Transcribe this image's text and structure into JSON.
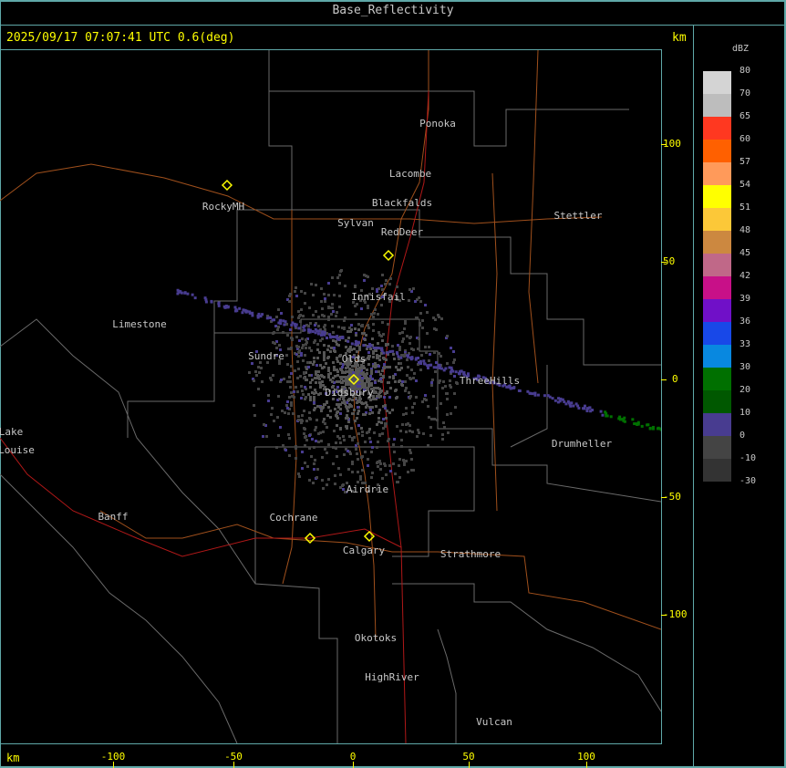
{
  "title": "Base_Reflectivity",
  "timestamp": "2025/09/17 07:07:41 UTC 0.6(deg)",
  "unit_top": "km",
  "unit_bottom": "km",
  "x_ticks": [
    "-100",
    "-50",
    "0",
    "50",
    "100"
  ],
  "y_ticks": [
    "100",
    "50",
    "0",
    "-50",
    "-100"
  ],
  "legend": {
    "title": "dBZ",
    "levels": [
      "80",
      "70",
      "65",
      "60",
      "57",
      "54",
      "51",
      "48",
      "45",
      "42",
      "39",
      "36",
      "33",
      "30",
      "20",
      "10",
      "0",
      "-10",
      "-30"
    ],
    "colors": [
      "#d4d4d4",
      "#bdbdbd",
      "#ff3820",
      "#ff6000",
      "#ff9a5a",
      "#ffff00",
      "#fcc838",
      "#cc8840",
      "#c06888",
      "#c81088",
      "#7010c8",
      "#1848e8",
      "#0888e0",
      "#007000",
      "#005800",
      "#483c90",
      "#444444",
      "#333333"
    ]
  },
  "towns": [
    "Ponoka",
    "Lacombe",
    "Blackfalds",
    "Sylvan",
    "RedDeer",
    "Stettler",
    "RockyMH",
    "Limestone",
    "Innisfail",
    "Sundre",
    "Olds",
    "Didsbury",
    "ThreeHills",
    "Drumheller",
    "Lake",
    "Louise",
    "Airdrie",
    "Cochrane",
    "Banff",
    "Calgary",
    "Strathmore",
    "Okotoks",
    "HighRiver",
    "Vulcan"
  ]
}
